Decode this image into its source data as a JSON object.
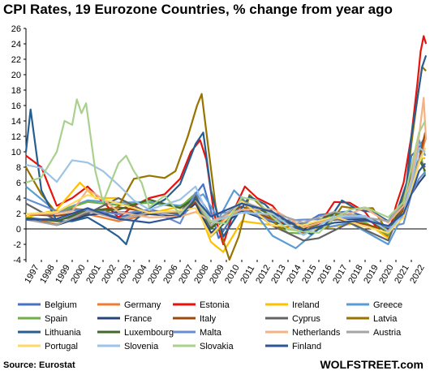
{
  "chart_data": {
    "type": "line",
    "title": "CPI Rates, 19 Eurozone Countries, % change from year ago",
    "source": "Source: Eurostat",
    "credit": "WOLFSTREET.com",
    "xlabel": "",
    "ylabel": "",
    "ylim": [
      -4,
      26
    ],
    "yticks": [
      -4,
      -2,
      0,
      2,
      4,
      6,
      8,
      10,
      12,
      14,
      16,
      18,
      20,
      22,
      24,
      26
    ],
    "xlim": [
      1997,
      2023
    ],
    "xticks": [
      1997,
      1998,
      1999,
      2000,
      2001,
      2002,
      2003,
      2004,
      2005,
      2006,
      2007,
      2008,
      2009,
      2010,
      2011,
      2012,
      2013,
      2014,
      2015,
      2016,
      2017,
      2018,
      2019,
      2020,
      2021,
      2022
    ],
    "grid": false,
    "legend_position": "bottom",
    "series": [
      {
        "name": "Belgium",
        "color": "#4472C4",
        "x": [
          1997,
          1999,
          2001,
          2003,
          2005,
          2007,
          2008,
          2008.5,
          2009.5,
          2011,
          2013,
          2015,
          2016,
          2018,
          2019.5,
          2020.5,
          2021.5,
          2022,
          2022.5,
          2022.9
        ],
        "y": [
          1.5,
          1.0,
          2.5,
          1.5,
          2.5,
          1.8,
          4.5,
          5.8,
          -1.2,
          3.5,
          1.2,
          0.6,
          1.8,
          2.3,
          1.2,
          0.2,
          3.0,
          9.5,
          10.5,
          12.0
        ]
      },
      {
        "name": "Germany",
        "color": "#ED7D31",
        "x": [
          1997,
          1999,
          2001,
          2003,
          2005,
          2007,
          2008,
          2009,
          2011,
          2013,
          2015,
          2017,
          2019,
          2020.5,
          2021.5,
          2022,
          2022.5,
          2022.9
        ],
        "y": [
          1.5,
          0.6,
          1.9,
          1.0,
          1.9,
          2.3,
          3.3,
          0.2,
          2.5,
          1.6,
          0.1,
          1.7,
          1.4,
          -0.5,
          4.5,
          5.5,
          8.5,
          11.6
        ]
      },
      {
        "name": "Estonia",
        "color": "#E8120C",
        "x": [
          1997,
          1998,
          1999,
          2000,
          2001,
          2002,
          2003,
          2004,
          2005,
          2006,
          2007,
          2007.7,
          2008.3,
          2008.7,
          2009.2,
          2009.8,
          2010.5,
          2011.2,
          2012,
          2013,
          2014,
          2015,
          2016,
          2017,
          2018,
          2019,
          2020,
          2020.5,
          2021,
          2021.5,
          2022,
          2022.4,
          2022.6,
          2022.8,
          2022.95
        ],
        "y": [
          9.5,
          8.0,
          3.0,
          4.0,
          5.5,
          3.5,
          1.5,
          3.0,
          4.0,
          4.5,
          6.5,
          10.0,
          11.5,
          9.0,
          2.0,
          -2.0,
          2.5,
          5.5,
          4.0,
          3.0,
          0.5,
          -0.5,
          0.5,
          3.5,
          3.4,
          2.2,
          -0.5,
          -1.0,
          3.0,
          6.0,
          12.0,
          19.0,
          23.0,
          25.0,
          24.0
        ]
      },
      {
        "name": "Ireland",
        "color": "#FFC000",
        "x": [
          1997,
          1999,
          2000.5,
          2001.5,
          2003,
          2005,
          2007,
          2008,
          2009,
          2009.8,
          2011,
          2013,
          2015,
          2017,
          2019,
          2020.5,
          2021.5,
          2022,
          2022.5,
          2022.9
        ],
        "y": [
          1.5,
          2.5,
          6.0,
          4.0,
          4.0,
          2.0,
          2.9,
          3.5,
          -1.7,
          -3.0,
          1.0,
          0.5,
          -0.3,
          0.3,
          0.9,
          -1.2,
          3.0,
          5.5,
          9.0,
          9.2
        ]
      },
      {
        "name": "Greece",
        "color": "#5B9BD5",
        "x": [
          1997,
          1999,
          2001,
          2003,
          2005,
          2007,
          2008.5,
          2009.5,
          2010.5,
          2011.5,
          2013,
          2014.5,
          2016,
          2018,
          2020.5,
          2021.5,
          2022,
          2022.5,
          2022.9
        ],
        "y": [
          5.5,
          2.2,
          3.7,
          3.4,
          3.5,
          3.0,
          4.5,
          1.3,
          5.0,
          3.0,
          -0.9,
          -2.5,
          0.0,
          0.8,
          -2.0,
          2.0,
          7.0,
          11.5,
          9.5
        ]
      },
      {
        "name": "Spain",
        "color": "#70AD47",
        "x": [
          1997,
          1999,
          2001,
          2003,
          2005,
          2007,
          2008,
          2009,
          2010.5,
          2012,
          2014,
          2015,
          2017,
          2019,
          2020.5,
          2021.5,
          2022,
          2022.5,
          2022.9
        ],
        "y": [
          1.9,
          2.2,
          3.5,
          3.1,
          3.4,
          2.8,
          4.6,
          -1.0,
          2.0,
          2.4,
          -0.5,
          -0.6,
          2.0,
          0.8,
          -0.8,
          4.0,
          7.5,
          10.5,
          7.0
        ]
      },
      {
        "name": "France",
        "color": "#264478",
        "x": [
          1997,
          1999,
          2001,
          2003,
          2005,
          2007,
          2008,
          2009,
          2011,
          2013,
          2015,
          2017,
          2019,
          2020.5,
          2021.5,
          2022,
          2022.5,
          2022.9
        ],
        "y": [
          1.3,
          0.5,
          1.8,
          2.2,
          1.9,
          1.6,
          3.3,
          -0.5,
          2.3,
          0.9,
          0.1,
          1.2,
          1.3,
          0.0,
          3.0,
          4.5,
          6.0,
          7.0
        ]
      },
      {
        "name": "Italy",
        "color": "#9E480E",
        "x": [
          1997,
          1999,
          2001,
          2003,
          2005,
          2007,
          2008,
          2009,
          2011,
          2013,
          2015,
          2017,
          2019,
          2020.5,
          2021.5,
          2022,
          2022.5,
          2022.9
        ],
        "y": [
          1.9,
          1.7,
          2.3,
          2.8,
          2.2,
          2.0,
          3.5,
          0.8,
          2.9,
          1.2,
          0.1,
          1.3,
          0.6,
          -0.2,
          2.5,
          6.5,
          9.0,
          12.5
        ]
      },
      {
        "name": "Cyprus",
        "color": "#636363",
        "x": [
          1997,
          1999,
          2001,
          2003,
          2005,
          2007,
          2008,
          2009,
          2011,
          2013,
          2015,
          2016,
          2018,
          2020.5,
          2021.5,
          2022,
          2022.5,
          2022.9
        ],
        "y": [
          3.3,
          1.1,
          2.0,
          4.0,
          2.0,
          2.2,
          4.4,
          0.2,
          3.5,
          0.4,
          -1.5,
          -1.2,
          0.8,
          -1.5,
          3.5,
          6.5,
          9.0,
          8.0
        ]
      },
      {
        "name": "Latvia",
        "color": "#997300",
        "x": [
          1997,
          1998,
          1999,
          2000,
          2001,
          2002,
          2003,
          2004,
          2005,
          2006,
          2006.7,
          2007.5,
          2008.1,
          2008.4,
          2008.8,
          2009.3,
          2009.8,
          2010.2,
          2010.8,
          2011.5,
          2012.5,
          2013.5,
          2014.5,
          2015.5,
          2016.5,
          2017.5,
          2018.5,
          2019.5,
          2020.5,
          2021.2,
          2021.7,
          2022,
          2022.4,
          2022.7,
          2022.95
        ],
        "y": [
          8.0,
          4.5,
          2.0,
          2.6,
          2.5,
          2.0,
          2.9,
          6.5,
          6.9,
          6.6,
          7.5,
          12.0,
          16.0,
          17.5,
          11.0,
          3.0,
          -1.5,
          -4.0,
          -1.0,
          4.4,
          2.5,
          0.0,
          0.6,
          0.2,
          0.1,
          2.9,
          2.6,
          2.7,
          -0.5,
          2.5,
          6.0,
          11.0,
          17.0,
          21.0,
          20.5
        ]
      },
      {
        "name": "Lithuania",
        "color": "#255E91",
        "x": [
          1997,
          1997.3,
          1998,
          1999,
          2000,
          2001,
          2002,
          2003,
          2003.5,
          2004,
          2005,
          2006,
          2007,
          2008,
          2008.5,
          2009,
          2009.8,
          2010.5,
          2011.5,
          2012.5,
          2013.5,
          2014.5,
          2015.5,
          2016.5,
          2017.5,
          2018.5,
          2019.5,
          2020.5,
          2021.2,
          2021.7,
          2022,
          2022.4,
          2022.7,
          2022.95
        ],
        "y": [
          10.0,
          15.5,
          5.0,
          1.0,
          1.0,
          1.5,
          0.3,
          -1.0,
          -2.0,
          1.0,
          2.7,
          3.8,
          5.8,
          11.0,
          12.5,
          5.0,
          -1.0,
          1.2,
          4.2,
          3.2,
          1.2,
          0.2,
          -0.7,
          0.7,
          3.7,
          2.5,
          2.2,
          1.0,
          3.0,
          6.0,
          12.0,
          17.0,
          21.0,
          22.5
        ]
      },
      {
        "name": "Luxembourg",
        "color": "#43682B",
        "x": [
          1997,
          1999,
          2001,
          2003,
          2005,
          2007,
          2008,
          2009,
          2011,
          2013,
          2015,
          2017,
          2019,
          2020.5,
          2021.5,
          2022,
          2022.5,
          2022.9
        ],
        "y": [
          1.4,
          1.0,
          2.4,
          2.5,
          3.8,
          2.7,
          4.1,
          0.0,
          3.7,
          1.7,
          0.1,
          2.1,
          1.6,
          -0.5,
          3.5,
          7.0,
          9.0,
          7.5
        ]
      },
      {
        "name": "Malta",
        "color": "#698ED0",
        "x": [
          1997,
          1999,
          2001,
          2003,
          2005,
          2007,
          2008,
          2009,
          2011,
          2013,
          2015,
          2017,
          2019,
          2020.5,
          2021.5,
          2022,
          2022.5,
          2022.9
        ],
        "y": [
          3.9,
          2.3,
          2.5,
          1.9,
          2.5,
          0.7,
          4.7,
          1.8,
          2.5,
          1.0,
          1.2,
          1.3,
          1.5,
          0.2,
          0.7,
          4.5,
          6.5,
          7.4
        ]
      },
      {
        "name": "Netherlands",
        "color": "#F4B183",
        "x": [
          1997,
          1999,
          2000,
          2001,
          2002,
          2003,
          2005,
          2007,
          2008,
          2009,
          2011,
          2013,
          2015,
          2017,
          2019,
          2020.5,
          2021.5,
          2022,
          2022.5,
          2022.8,
          2022.95
        ],
        "y": [
          1.9,
          2.0,
          2.3,
          5.1,
          3.9,
          2.2,
          1.5,
          1.6,
          2.2,
          1.0,
          2.5,
          2.6,
          0.2,
          1.3,
          2.7,
          0.8,
          3.0,
          6.5,
          12.0,
          17.0,
          11.5
        ]
      },
      {
        "name": "Austria",
        "color": "#A5A5A5",
        "x": [
          1997,
          1999,
          2001,
          2003,
          2005,
          2007,
          2008,
          2009,
          2011,
          2013,
          2015,
          2017,
          2019,
          2020.5,
          2021.5,
          2022,
          2022.5,
          2022.9
        ],
        "y": [
          1.2,
          0.5,
          2.3,
          1.3,
          2.1,
          2.2,
          3.8,
          0.4,
          3.6,
          2.1,
          0.8,
          2.2,
          1.5,
          1.0,
          3.5,
          5.5,
          9.0,
          10.5
        ]
      },
      {
        "name": "Portugal",
        "color": "#FFD966",
        "x": [
          1997,
          1999,
          2001,
          2003,
          2005,
          2007,
          2008,
          2009,
          2011,
          2013,
          2015,
          2017,
          2019,
          2020.5,
          2021.5,
          2022,
          2022.5,
          2022.9
        ],
        "y": [
          1.9,
          2.2,
          4.4,
          3.3,
          2.1,
          2.4,
          2.7,
          -0.9,
          3.6,
          0.4,
          0.5,
          1.6,
          0.3,
          -0.5,
          1.5,
          5.0,
          8.5,
          10.5
        ]
      },
      {
        "name": "Slovenia",
        "color": "#9DC3E6",
        "x": [
          1997,
          1998,
          1999,
          2000,
          2001,
          2002,
          2003,
          2004,
          2005,
          2007,
          2008,
          2009,
          2011,
          2013,
          2015,
          2017,
          2019,
          2020.5,
          2021.5,
          2022,
          2022.5,
          2022.9
        ],
        "y": [
          8.3,
          7.9,
          6.1,
          8.9,
          8.6,
          7.5,
          5.7,
          3.7,
          2.5,
          3.8,
          5.5,
          0.9,
          2.1,
          1.9,
          -0.8,
          1.6,
          1.7,
          -0.3,
          2.0,
          6.0,
          10.5,
          10.0
        ]
      },
      {
        "name": "Slovakia",
        "color": "#A9D18E",
        "x": [
          1997,
          1998,
          1999,
          1999.5,
          2000,
          2000.3,
          2000.6,
          2000.9,
          2001.5,
          2002,
          2003,
          2003.5,
          2004,
          2004.5,
          2005,
          2006,
          2007,
          2008,
          2009,
          2010,
          2011,
          2012,
          2013,
          2014,
          2015,
          2016,
          2017,
          2018,
          2019,
          2020.5,
          2021.5,
          2022,
          2022.5,
          2022.9
        ],
        "y": [
          6.0,
          6.7,
          10.0,
          14.0,
          13.5,
          16.8,
          15.0,
          16.3,
          7.5,
          3.5,
          8.5,
          9.5,
          7.5,
          6.0,
          2.8,
          4.3,
          1.9,
          3.9,
          0.9,
          0.7,
          4.1,
          3.7,
          1.5,
          -0.1,
          -0.3,
          -0.5,
          1.4,
          2.5,
          2.8,
          1.5,
          3.5,
          8.0,
          12.5,
          14.0
        ]
      },
      {
        "name": "Finland",
        "color": "#2F5597",
        "x": [
          1997,
          1999,
          2001,
          2003,
          2005,
          2007,
          2008,
          2009,
          2011,
          2013,
          2015,
          2017,
          2019,
          2020.5,
          2021.5,
          2022,
          2022.5,
          2022.9
        ],
        "y": [
          1.2,
          1.3,
          2.7,
          1.3,
          0.8,
          1.6,
          3.9,
          1.6,
          3.3,
          2.2,
          -0.2,
          0.8,
          1.1,
          0.4,
          2.0,
          4.5,
          7.5,
          8.5
        ]
      }
    ]
  }
}
